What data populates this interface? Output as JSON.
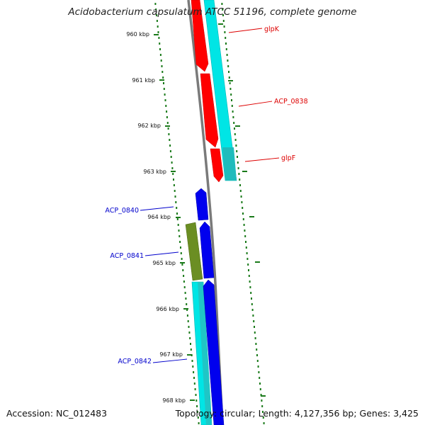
{
  "title": "Acidobacterium capsulatum ATCC 51196, complete genome",
  "footer": {
    "accession": "Accession: NC_012483",
    "topology": "Topology: circular; Length: 4,127,356 bp; Genes: 3,425"
  },
  "scale": {
    "unit": "kbp",
    "ticks": [
      "960 kbp",
      "961 kbp",
      "962 kbp",
      "963 kbp",
      "964 kbp",
      "965 kbp",
      "966 kbp",
      "967 kbp",
      "968 kbp"
    ]
  },
  "colors": {
    "forward": "#ff0000",
    "reverse": "#0000ee",
    "cyan": "#00e5e5",
    "olive": "#6b8e23",
    "backbone": "#7a7a7a",
    "dots": "#1a7a1a"
  },
  "gene_labels": [
    {
      "name": "glpK",
      "color": "#dd0000"
    },
    {
      "name": "ACP_0838",
      "color": "#dd0000"
    },
    {
      "name": "glpF",
      "color": "#dd0000"
    },
    {
      "name": "ACP_0840",
      "color": "#0000cc"
    },
    {
      "name": "ACP_0841",
      "color": "#0000cc"
    },
    {
      "name": "ACP_0842",
      "color": "#0000cc"
    }
  ]
}
